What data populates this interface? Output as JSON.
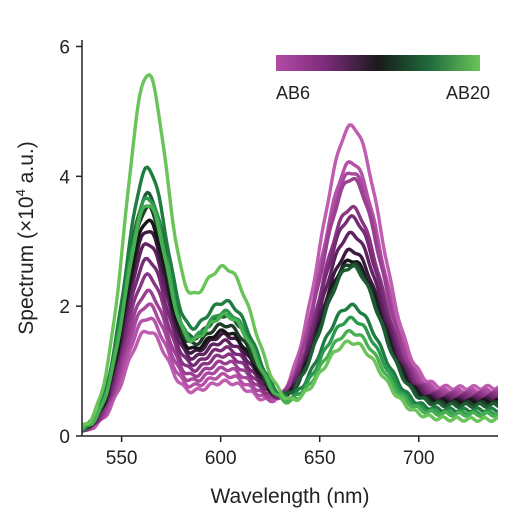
{
  "chart_data": {
    "type": "line",
    "xlabel": "Wavelength (nm)",
    "ylabel": "Spectrum (×10",
    "ylabel_exp": "4",
    "ylabel_unit": " a.u.)",
    "xlim": [
      530,
      740
    ],
    "ylim": [
      0,
      6.1
    ],
    "xticks": [
      550,
      600,
      650,
      700
    ],
    "yticks": [
      0,
      2,
      4,
      6
    ],
    "grid": false,
    "legend": {
      "type": "colorbar",
      "placement": "top-right",
      "start_label": "AB6",
      "end_label": "AB20",
      "stops": [
        "#b34aa6",
        "#7a2a78",
        "#1a1a1a",
        "#1f6a3c",
        "#6ac45a"
      ]
    },
    "series": [
      {
        "color": "#bf5db0",
        "peak1": 1.65,
        "shoulder": 0.75,
        "valley": 0.7,
        "peak2": 4.75,
        "tail740": 0.8
      },
      {
        "color": "#b552a8",
        "peak1": 1.85,
        "shoulder": 0.85,
        "valley": 0.75,
        "peak2": 4.2,
        "tail740": 0.75
      },
      {
        "color": "#a8489e",
        "peak1": 2.05,
        "shoulder": 0.95,
        "valley": 0.8,
        "peak2": 4.05,
        "tail740": 0.72
      },
      {
        "color": "#9a3f92",
        "peak1": 2.25,
        "shoulder": 1.05,
        "valley": 0.85,
        "peak2": 3.95,
        "tail740": 0.7
      },
      {
        "color": "#8a3584",
        "peak1": 2.5,
        "shoulder": 1.15,
        "valley": 0.85,
        "peak2": 3.5,
        "tail740": 0.68
      },
      {
        "color": "#772b74",
        "peak1": 2.75,
        "shoulder": 1.25,
        "valley": 0.9,
        "peak2": 3.35,
        "tail740": 0.65
      },
      {
        "color": "#5e2360",
        "peak1": 3.0,
        "shoulder": 1.35,
        "valley": 0.95,
        "peak2": 3.1,
        "tail740": 0.62
      },
      {
        "color": "#3d1b40",
        "peak1": 3.2,
        "shoulder": 1.45,
        "valley": 0.95,
        "peak2": 2.85,
        "tail740": 0.6
      },
      {
        "color": "#161616",
        "peak1": 3.35,
        "shoulder": 1.5,
        "valley": 1.0,
        "peak2": 2.7,
        "tail740": 0.58
      },
      {
        "color": "#1d3d28",
        "peak1": 3.55,
        "shoulder": 1.6,
        "valley": 1.0,
        "peak2": 2.65,
        "tail740": 0.55
      },
      {
        "color": "#1e5c35",
        "peak1": 3.75,
        "shoulder": 1.75,
        "valley": 1.05,
        "peak2": 2.6,
        "tail740": 0.52
      },
      {
        "color": "#1f7d42",
        "peak1": 4.15,
        "shoulder": 1.95,
        "valley": 1.1,
        "peak2": 2.0,
        "tail740": 0.45
      },
      {
        "color": "#2c9a4e",
        "peak1": 3.7,
        "shoulder": 1.8,
        "valley": 1.05,
        "peak2": 1.8,
        "tail740": 0.4
      },
      {
        "color": "#48b052",
        "peak1": 3.6,
        "shoulder": 1.75,
        "valley": 1.0,
        "peak2": 1.6,
        "tail740": 0.38
      },
      {
        "color": "#6ac45a",
        "peak1": 5.6,
        "shoulder": 2.45,
        "valley": 1.05,
        "peak2": 1.45,
        "tail740": 0.3
      }
    ]
  }
}
